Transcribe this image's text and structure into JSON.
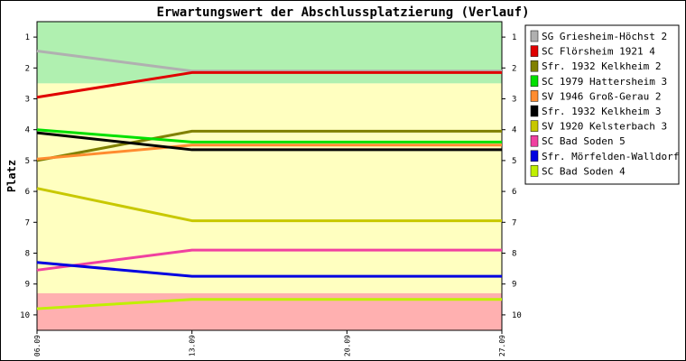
{
  "chart_data": {
    "type": "line",
    "title": "Erwartungswert der Abschlussplatzierung (Verlauf)",
    "ylabel": "Platz",
    "xlabel": "",
    "categories": [
      "06.09",
      "13.09",
      "20.09",
      "27.09"
    ],
    "ylim": [
      0.5,
      10.5
    ],
    "y_inverted": true,
    "y_ticks": [
      1,
      2,
      3,
      4,
      5,
      6,
      7,
      8,
      9,
      10
    ],
    "bands": [
      {
        "from": 0.5,
        "to": 2.5,
        "color": "#b0f0b0"
      },
      {
        "from": 2.5,
        "to": 9.3,
        "color": "#ffffc0"
      },
      {
        "from": 9.3,
        "to": 10.5,
        "color": "#ffb0b0"
      }
    ],
    "legend_position": "right",
    "series": [
      {
        "name": "SG Griesheim-Höchst 2",
        "color": "#b0b0b0",
        "values": [
          1.45,
          2.1,
          2.1,
          2.1
        ]
      },
      {
        "name": "SC Flörsheim 1921 4",
        "color": "#e00000",
        "values": [
          2.95,
          2.15,
          2.15,
          2.15
        ]
      },
      {
        "name": "Sfr. 1932 Kelkheim 2",
        "color": "#808000",
        "values": [
          5.0,
          4.05,
          4.05,
          4.05
        ]
      },
      {
        "name": "SC 1979 Hattersheim 3",
        "color": "#00e000",
        "values": [
          4.0,
          4.4,
          4.4,
          4.4
        ]
      },
      {
        "name": "SV 1946 Groß-Gerau 2",
        "color": "#ff8c30",
        "values": [
          4.95,
          4.5,
          4.5,
          4.5
        ]
      },
      {
        "name": "Sfr. 1932 Kelkheim 3",
        "color": "#000000",
        "values": [
          4.1,
          4.65,
          4.65,
          4.65
        ]
      },
      {
        "name": "SV 1920 Kelsterbach 3",
        "color": "#c8c800",
        "values": [
          5.9,
          6.95,
          6.95,
          6.95
        ]
      },
      {
        "name": "SC Bad Soden 5",
        "color": "#f040a0",
        "values": [
          8.55,
          7.9,
          7.9,
          7.9
        ]
      },
      {
        "name": "Sfr. Mörfelden-Walldorf 2",
        "color": "#0000e0",
        "values": [
          8.3,
          8.75,
          8.75,
          8.75
        ]
      },
      {
        "name": "SC Bad Soden 4",
        "color": "#c0f000",
        "values": [
          9.8,
          9.5,
          9.5,
          9.5
        ]
      }
    ]
  }
}
